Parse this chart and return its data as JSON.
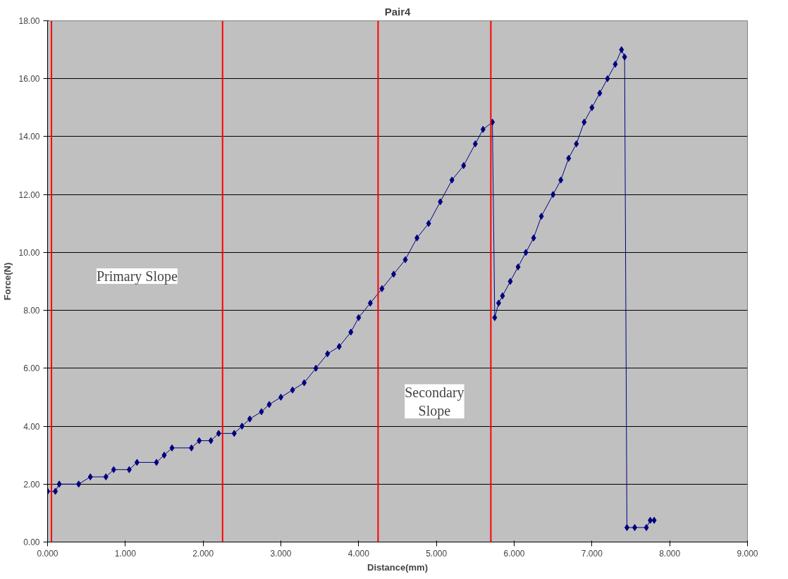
{
  "chart_data": {
    "type": "line",
    "title": "Pair4",
    "xlabel": "Distance(mm)",
    "ylabel": "Force(N)",
    "x": [
      0.0,
      0.1,
      0.15,
      0.4,
      0.55,
      0.75,
      0.85,
      1.05,
      1.15,
      1.4,
      1.5,
      1.6,
      1.85,
      1.95,
      2.1,
      2.2,
      2.4,
      2.5,
      2.6,
      2.75,
      2.85,
      3.0,
      3.15,
      3.3,
      3.45,
      3.6,
      3.75,
      3.9,
      4.0,
      4.15,
      4.3,
      4.45,
      4.6,
      4.75,
      4.9,
      5.05,
      5.2,
      5.35,
      5.5,
      5.6,
      5.72,
      5.75,
      5.8,
      5.85,
      5.95,
      6.05,
      6.15,
      6.25,
      6.35,
      6.5,
      6.6,
      6.7,
      6.8,
      6.9,
      7.0,
      7.1,
      7.2,
      7.3,
      7.38,
      7.42,
      7.45,
      7.55,
      7.7,
      7.75,
      7.8
    ],
    "series": [
      {
        "color": "#000080",
        "values": [
          1.75,
          1.75,
          2.0,
          2.0,
          2.25,
          2.25,
          2.5,
          2.5,
          2.75,
          2.75,
          3.0,
          3.25,
          3.25,
          3.5,
          3.5,
          3.75,
          3.75,
          4.0,
          4.25,
          4.5,
          4.75,
          5.0,
          5.25,
          5.5,
          6.0,
          6.5,
          6.75,
          7.25,
          7.75,
          8.25,
          8.75,
          9.25,
          9.75,
          10.5,
          11.0,
          11.75,
          12.5,
          13.0,
          13.75,
          14.25,
          14.5,
          7.75,
          8.25,
          8.5,
          9.0,
          9.5,
          10.0,
          10.5,
          11.25,
          12.0,
          12.5,
          13.25,
          13.75,
          14.5,
          15.0,
          15.5,
          16.0,
          16.5,
          17.0,
          16.75,
          0.5,
          0.5,
          0.5,
          0.75,
          0.75
        ]
      }
    ],
    "marker": "diamond",
    "line_style": "solid",
    "grid": "y",
    "xlim": [
      0,
      9
    ],
    "ylim": [
      0,
      18
    ],
    "xticks": [
      {
        "value": 0,
        "label": "0.000"
      },
      {
        "value": 1,
        "label": "1.000"
      },
      {
        "value": 2,
        "label": "2.000"
      },
      {
        "value": 3,
        "label": "3.000"
      },
      {
        "value": 4,
        "label": "4.000"
      },
      {
        "value": 5,
        "label": "5.000"
      },
      {
        "value": 6,
        "label": "6.000"
      },
      {
        "value": 7,
        "label": "7.000"
      },
      {
        "value": 8,
        "label": "8.000"
      },
      {
        "value": 9,
        "label": "9.000"
      }
    ],
    "yticks": [
      {
        "value": 0,
        "label": "0.00"
      },
      {
        "value": 2,
        "label": "2.00"
      },
      {
        "value": 4,
        "label": "4.00"
      },
      {
        "value": 6,
        "label": "6.00"
      },
      {
        "value": 8,
        "label": "8.00"
      },
      {
        "value": 10,
        "label": "10.00"
      },
      {
        "value": 12,
        "label": "12.00"
      },
      {
        "value": 14,
        "label": "14.00"
      },
      {
        "value": 16,
        "label": "16.00"
      },
      {
        "value": 18,
        "label": "18.00"
      }
    ],
    "ref_lines": [
      {
        "axis": "x",
        "value": 0.05,
        "color": "#ff0000"
      },
      {
        "axis": "x",
        "value": 2.25,
        "color": "#ff0000"
      },
      {
        "axis": "x",
        "value": 4.25,
        "color": "#ff0000"
      },
      {
        "axis": "x",
        "value": 5.7,
        "color": "#ff0000"
      }
    ],
    "annotations": [
      "Primary Slope",
      "Secondary\nSlope"
    ]
  }
}
